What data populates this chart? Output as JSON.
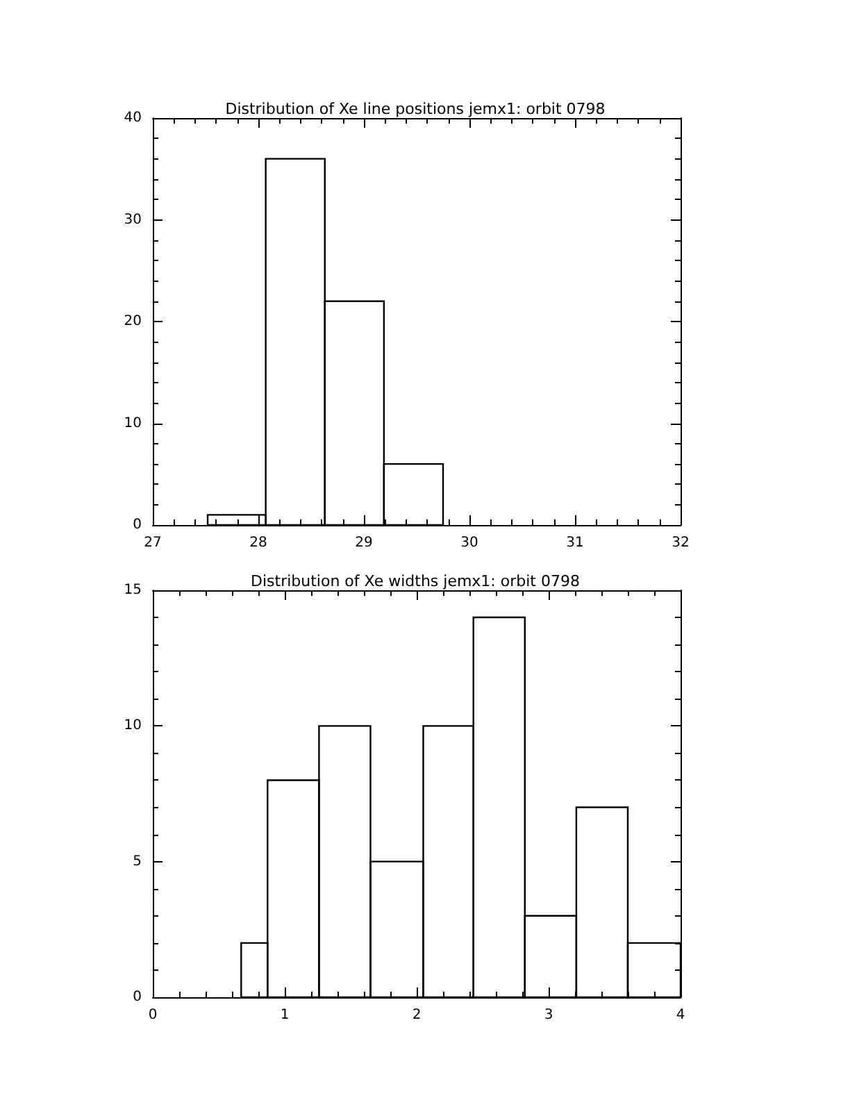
{
  "chart_data": [
    {
      "type": "histogram",
      "title": "Distribution of Xe line positions jemx1: orbit 0798",
      "bins": [
        27.52,
        28.07,
        28.63,
        29.19,
        29.75
      ],
      "values": [
        1,
        36,
        22,
        6
      ],
      "color": "#000000",
      "xlim": [
        27,
        32
      ],
      "xticks": [
        27,
        28,
        29,
        30,
        31,
        32
      ],
      "ylim": [
        0,
        40
      ],
      "yticks": [
        0,
        10,
        20,
        30,
        40
      ],
      "grid": false
    },
    {
      "type": "histogram",
      "title": "Distribution of Xe widths jemx1: orbit 0798",
      "bins": [
        0.67,
        0.87,
        1.26,
        1.65,
        2.05,
        2.43,
        2.82,
        3.21,
        3.6,
        4.0
      ],
      "values": [
        2,
        8,
        10,
        5,
        10,
        14,
        3,
        7,
        2
      ],
      "color": "#000000",
      "xlim": [
        0,
        4
      ],
      "xticks": [
        0,
        1,
        2,
        3,
        4
      ],
      "ylim": [
        0,
        15
      ],
      "yticks": [
        0,
        5,
        10,
        15
      ],
      "grid": false
    }
  ]
}
